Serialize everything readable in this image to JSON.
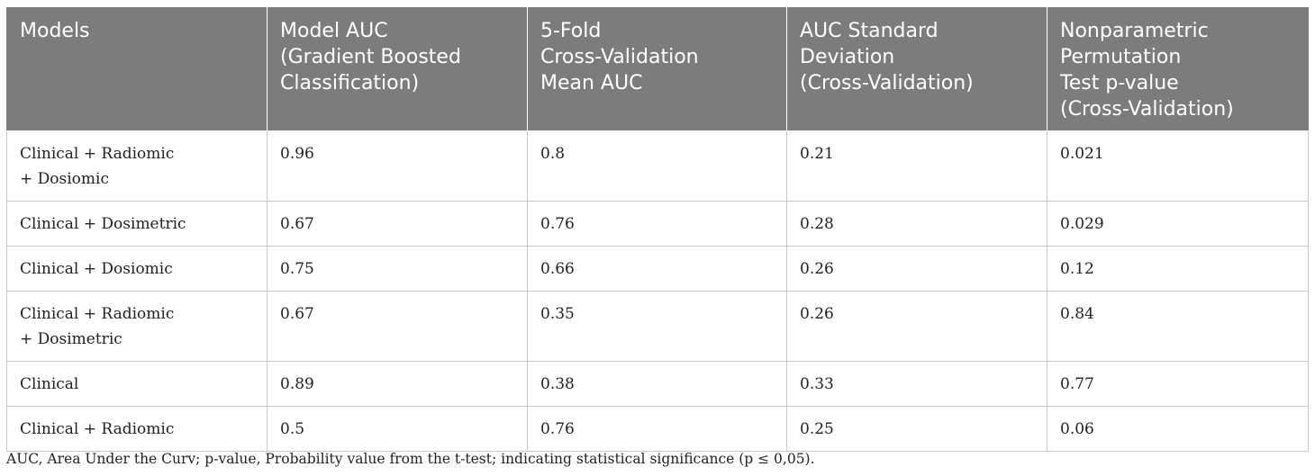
{
  "table": {
    "headers": [
      "Models",
      "Model AUC\n(Gradient Boosted\nClassification)",
      "5-Fold\nCross-Validation\nMean AUC",
      "AUC Standard\nDeviation\n(Cross-Validation)",
      "Nonparametric\nPermutation\nTest p-value\n(Cross-Validation)"
    ],
    "rows": [
      [
        "Clinical + Radiomic\n+ Dosiomic",
        "0.96",
        "0.8",
        "0.21",
        "0.021"
      ],
      [
        "Clinical + Dosimetric",
        "0.67",
        "0.76",
        "0.28",
        "0.029"
      ],
      [
        "Clinical + Dosiomic",
        "0.75",
        "0.66",
        "0.26",
        "0.12"
      ],
      [
        "Clinical + Radiomic\n+ Dosimetric",
        "0.67",
        "0.35",
        "0.26",
        "0.84"
      ],
      [
        "Clinical",
        "0.89",
        "0.38",
        "0.33",
        "0.77"
      ],
      [
        "Clinical + Radiomic",
        "0.5",
        "0.76",
        "0.25",
        "0.06"
      ]
    ]
  },
  "footnote": "AUC, Area Under the Curv; p-value, Probability value from the t-test; indicating statistical significance (p ≤ 0,05).",
  "colors": {
    "header_bg": "#7c7c7c",
    "header_text": "#ffffff",
    "border": "#c8c8c8",
    "body_text": "#222222"
  }
}
